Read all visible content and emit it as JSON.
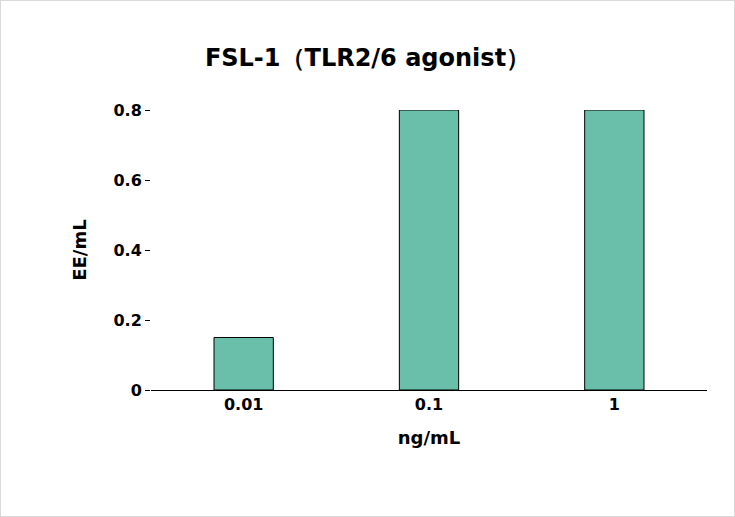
{
  "chart_data": {
    "type": "bar",
    "title": "FSL-1（TLR2/6 agonist）",
    "categories": [
      "0.01",
      "0.1",
      "1"
    ],
    "values": [
      0.15,
      0.8,
      0.8
    ],
    "color": "#6abfaa",
    "x_label": "ng/mL",
    "y_label": "EE/mL",
    "ylim": [
      0,
      0.8
    ],
    "yticks": [
      0,
      0.2,
      0.4,
      0.6,
      0.8
    ],
    "grid": false
  }
}
